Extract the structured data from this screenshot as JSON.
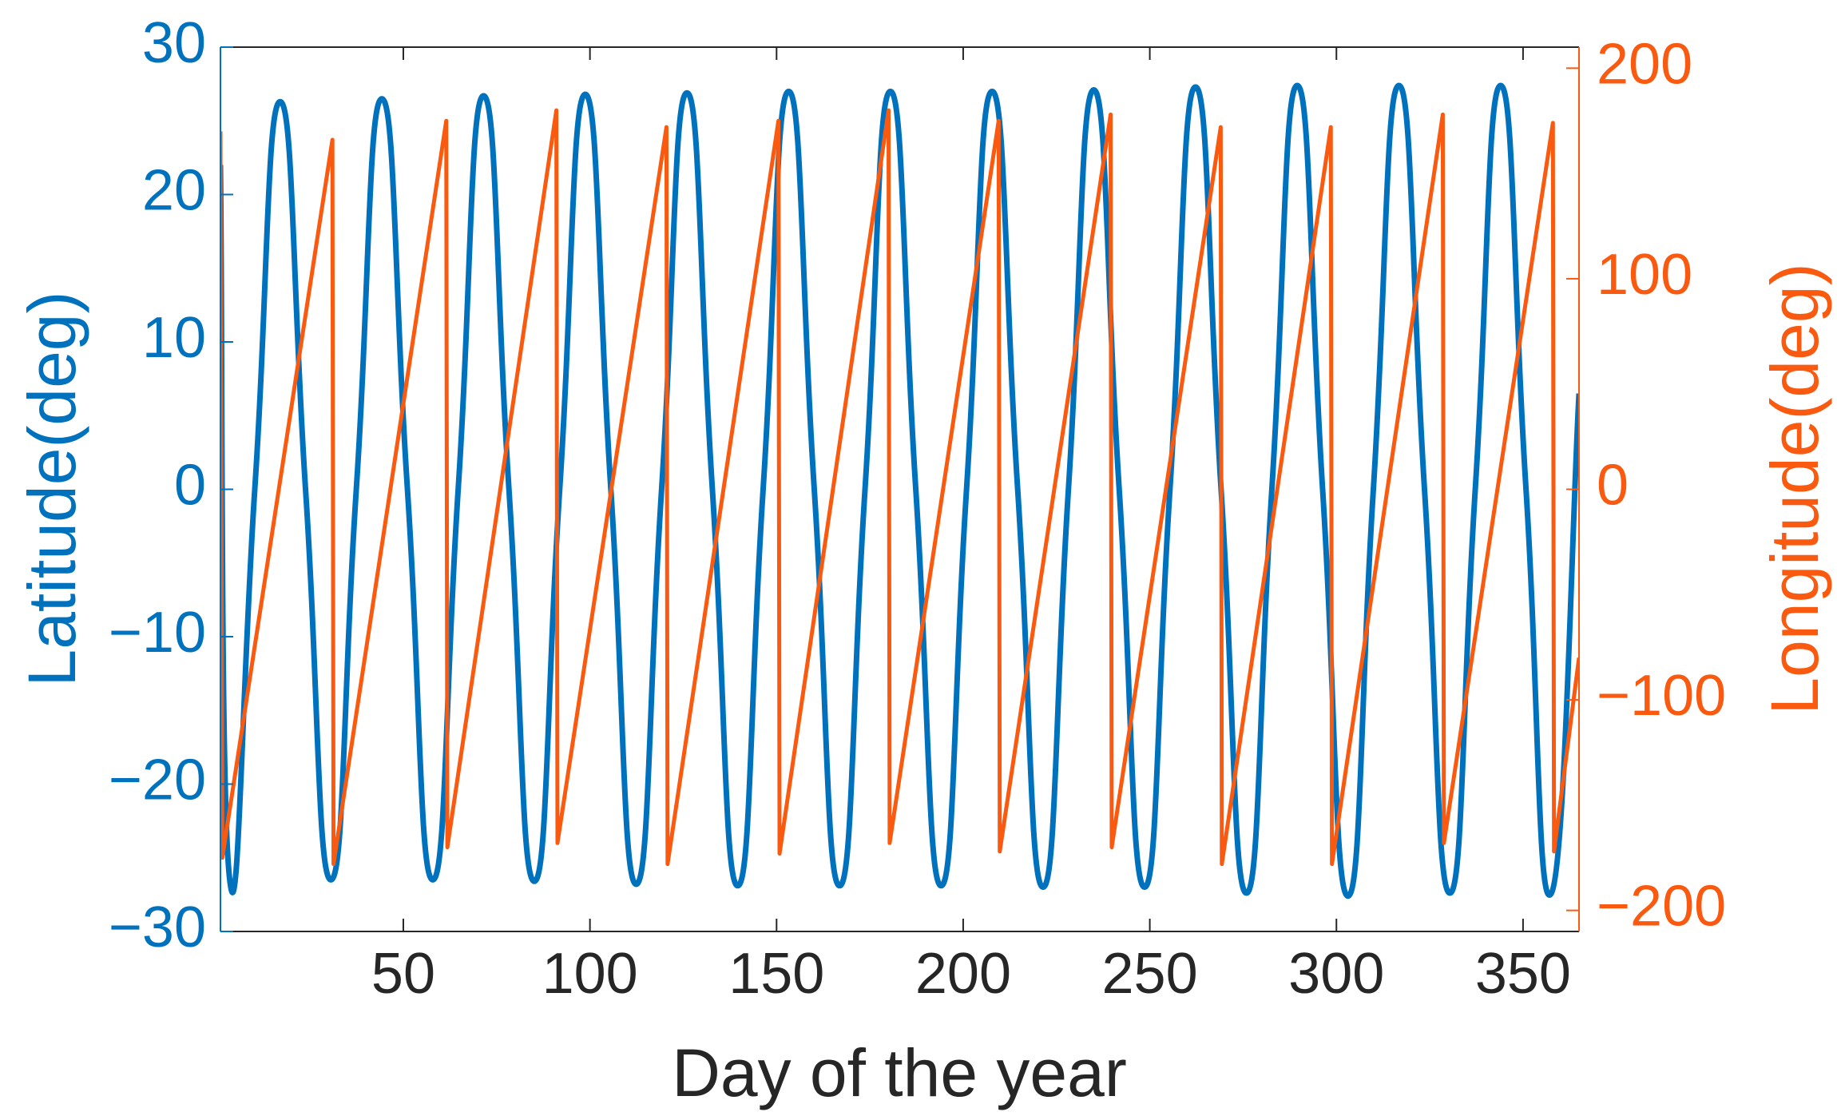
{
  "chart_data": {
    "type": "line",
    "xlabel": "Day of the year",
    "ylabel": "Latitude(deg)",
    "y2label": "Longitude(deg)",
    "xlim": [
      1,
      365
    ],
    "xticks": [
      50,
      100,
      150,
      200,
      250,
      300,
      350
    ],
    "ylim": [
      -30,
      30
    ],
    "yticks": [
      {
        "value": -30,
        "label": "−30"
      },
      {
        "value": -20,
        "label": "−20"
      },
      {
        "value": -10,
        "label": "−10"
      },
      0,
      10,
      20,
      30
    ],
    "y2lim": [
      -210,
      210
    ],
    "y2ticks": [
      {
        "value": -200,
        "label": "−200"
      },
      {
        "value": -100,
        "label": "−100"
      },
      0,
      100,
      200
    ],
    "grid": false,
    "series": [
      {
        "color": "#0072bd",
        "smooth": true,
        "x": [
          1,
          3.4,
          10.2,
          17,
          23.8,
          30.6,
          37.4,
          44.25,
          51.1,
          57.9,
          64.7,
          71.5,
          78.3,
          85.1,
          91.9,
          98.75,
          105.6,
          112.4,
          119.2,
          126,
          132.8,
          139.6,
          146.4,
          153.25,
          160.1,
          166.9,
          173.7,
          180.5,
          187.3,
          194.1,
          200.9,
          207.75,
          214.6,
          221.4,
          228.2,
          235,
          241.8,
          248.6,
          255.4,
          262.25,
          269.1,
          275.9,
          282.7,
          289.5,
          296.3,
          303.1,
          309.9,
          316.75,
          323.6,
          330.4,
          337.2,
          344,
          350.8,
          357.6,
          365
        ],
        "values": [
          22,
          -26.3,
          0,
          26.3,
          0,
          -26.5,
          0,
          26.5,
          0,
          -26.5,
          0,
          26.7,
          0,
          -26.6,
          0,
          26.8,
          0,
          -26.8,
          0,
          26.9,
          0,
          -26.9,
          0,
          27,
          0,
          -26.9,
          0,
          27,
          0,
          -26.9,
          0,
          27,
          0,
          -27,
          0,
          27.1,
          0,
          -27,
          0,
          27.3,
          0,
          -27.4,
          0,
          27.4,
          0,
          -27.6,
          0,
          27.4,
          0,
          -27.4,
          0,
          27.4,
          0,
          -27.4,
          6.5
        ]
      },
      {
        "color": "#fa5a0f",
        "axis": "y2",
        "smooth": false,
        "x": [
          1,
          1.5,
          31,
          31.3,
          61.5,
          61.8,
          91,
          91.3,
          120.5,
          120.8,
          150.5,
          150.8,
          180,
          180.3,
          209.5,
          209.8,
          239.5,
          239.8,
          269,
          269.3,
          298.5,
          298.8,
          328.5,
          328.8,
          358,
          358.3,
          365
        ],
        "values": [
          170,
          -175,
          166,
          -178,
          175,
          -170,
          180,
          -168,
          172,
          -178,
          175,
          -173,
          180,
          -168,
          175,
          -172,
          178,
          -170,
          172,
          -178,
          172,
          -178,
          178,
          -168,
          174,
          -172,
          -80
        ]
      }
    ]
  }
}
